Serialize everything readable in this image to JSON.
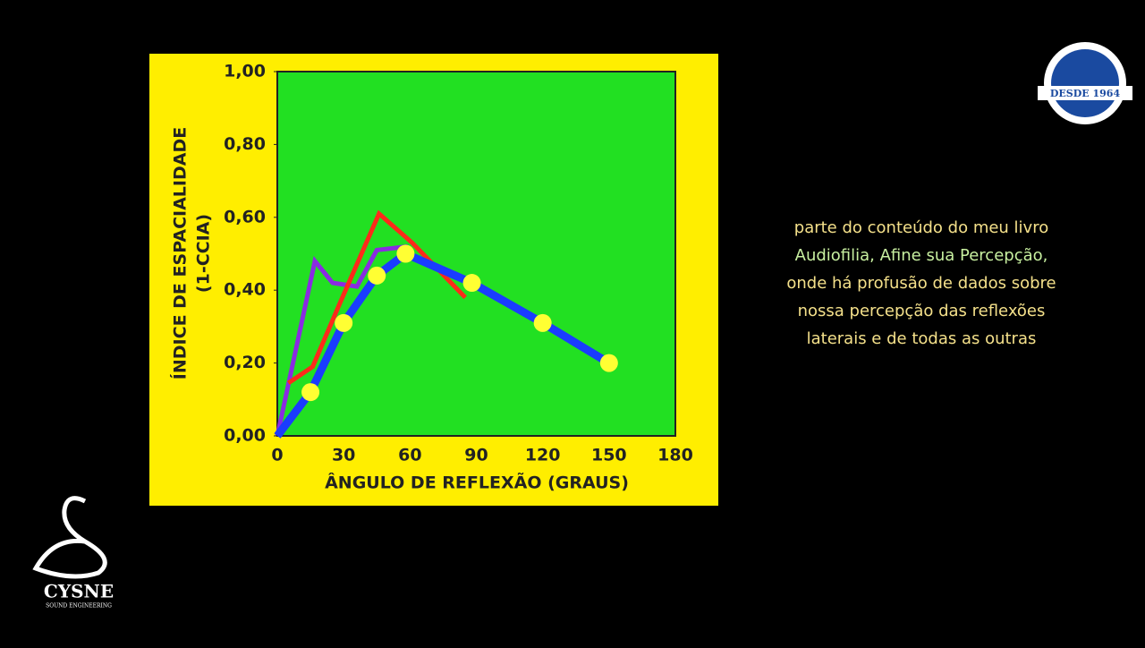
{
  "chart_data": {
    "type": "line",
    "ylabel": "ÍNDICE DE ESPACIALIDADE",
    "ylabel2": "(1-CCIA)",
    "xlabel": "ÂNGULO DE REFLEXÃO (GRAUS)",
    "xlim": [
      0,
      180
    ],
    "xticks": [
      0,
      30,
      60,
      90,
      120,
      150,
      180
    ],
    "ylim": [
      0,
      1
    ],
    "yticks": [
      {
        "value": 0,
        "label": "0,00"
      },
      {
        "value": 0.2,
        "label": "0,20"
      },
      {
        "value": 0.4,
        "label": "0,40"
      },
      {
        "value": 0.6,
        "label": "0,60"
      },
      {
        "value": 0.8,
        "label": "0,80"
      },
      {
        "value": 1,
        "label": "1,00"
      }
    ],
    "series": [
      {
        "color": "#8a2be2",
        "x": [
          0,
          17,
          25,
          36,
          45,
          59
        ],
        "values": [
          0,
          0.48,
          0.42,
          0.41,
          0.51,
          0.52
        ]
      },
      {
        "color": "#ff2a1a",
        "x": [
          5,
          16,
          28,
          46,
          61,
          85
        ],
        "values": [
          0.145,
          0.19,
          0.36,
          0.61,
          0.53,
          0.38
        ]
      },
      {
        "color": "#1a3cff",
        "x": [
          0,
          15,
          30,
          45,
          58,
          88,
          120,
          150
        ],
        "values": [
          0,
          0.12,
          0.31,
          0.44,
          0.5,
          0.42,
          0.31,
          0.2
        ]
      },
      {
        "color": "#ffff33",
        "marker": true,
        "x": [
          15,
          30,
          45,
          58,
          88,
          120,
          150
        ],
        "values": [
          0.12,
          0.31,
          0.44,
          0.5,
          0.42,
          0.31,
          0.2
        ]
      }
    ]
  },
  "caption": [
    "parte do conteúdo do meu livro",
    "Audiofilia, Afine sua Percepção,",
    "onde há profusão de dados sobre",
    "nossa percepção das reflexões",
    "laterais e de todas as outras"
  ],
  "badge": "DESDE 1964",
  "logo": {
    "name": "CYSNE",
    "tagline": "SOUND ENGINEERING"
  }
}
